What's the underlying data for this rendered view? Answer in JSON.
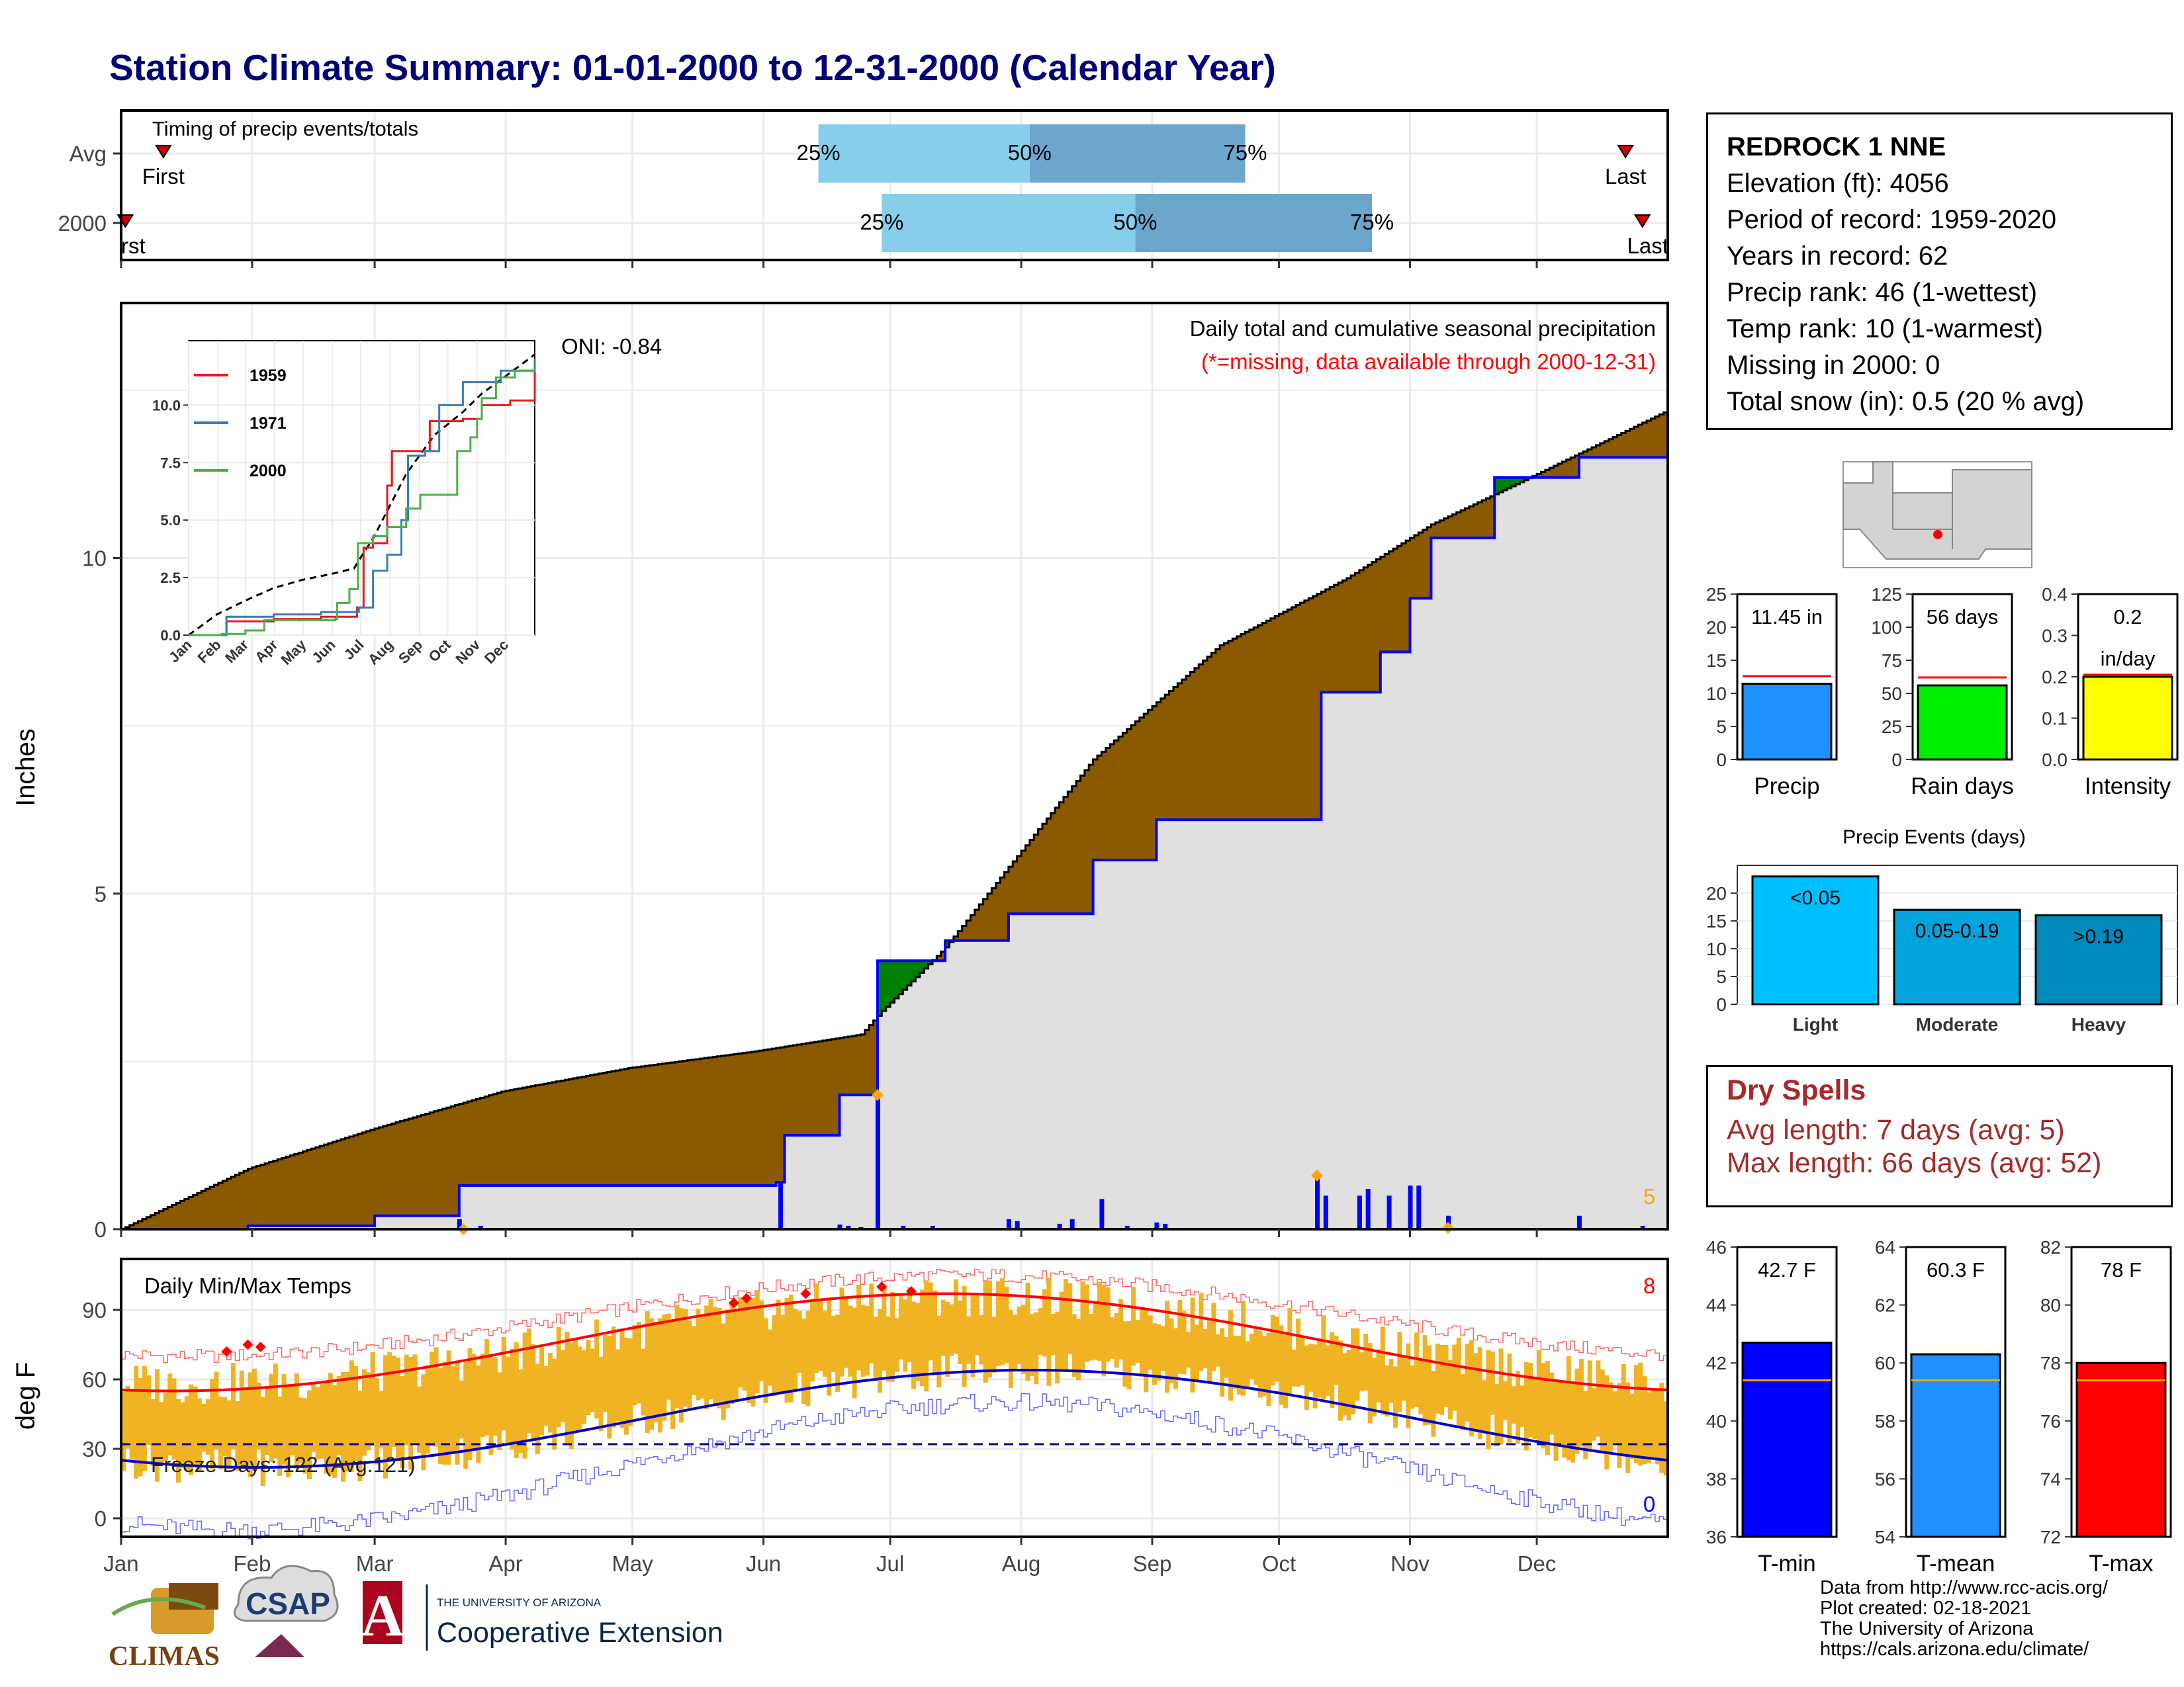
{
  "title": "Station Climate Summary: 01-01-2000 to 12-31-2000 (Calendar Year)",
  "timing": {
    "label": "Timing of precip events/totals",
    "rows": [
      {
        "name": "Avg",
        "first_doy": 10,
        "p25_doy": 165,
        "p50_doy": 215,
        "p75_doy": 266,
        "last_doy": 356
      },
      {
        "name": "2000",
        "first_doy": 1,
        "p25_doy": 180,
        "p50_doy": 240,
        "p75_doy": 296,
        "last_doy": 360
      }
    ],
    "first_label": "First",
    "last_label": "Last",
    "first_label_2000": "rst",
    "last_label_2000": "Last",
    "pct_labels": [
      "25%",
      "50%",
      "75%"
    ]
  },
  "precip_panel": {
    "ylabel": "Inches",
    "title": "Daily total and cumulative seasonal precipitation",
    "subtitle": "(*=missing, data available through 2000-12-31)",
    "oni": "ONI: -0.84",
    "count_label": "5",
    "yticks": [
      "0",
      "5",
      "10"
    ],
    "cum_avg_points": [
      [
        0,
        0
      ],
      [
        30,
        0.9
      ],
      [
        60,
        1.5
      ],
      [
        90,
        2.05
      ],
      [
        120,
        2.4
      ],
      [
        150,
        2.65
      ],
      [
        175,
        2.9
      ],
      [
        180,
        3.25
      ],
      [
        195,
        4.2
      ],
      [
        210,
        5.4
      ],
      [
        230,
        7.0
      ],
      [
        260,
        8.7
      ],
      [
        290,
        9.7
      ],
      [
        310,
        10.5
      ],
      [
        330,
        11.1
      ],
      [
        366,
        12.2
      ]
    ],
    "cum_2000_points": [
      [
        0,
        0
      ],
      [
        30,
        0.05
      ],
      [
        60,
        0.2
      ],
      [
        80,
        0.65
      ],
      [
        155,
        0.7
      ],
      [
        157,
        1.4
      ],
      [
        170,
        2.0
      ],
      [
        178,
        2.0
      ],
      [
        179,
        4.0
      ],
      [
        195,
        4.3
      ],
      [
        210,
        4.7
      ],
      [
        230,
        5.5
      ],
      [
        245,
        6.1
      ],
      [
        282,
        6.1
      ],
      [
        284,
        8.0
      ],
      [
        298,
        8.6
      ],
      [
        305,
        9.4
      ],
      [
        310,
        10.3
      ],
      [
        325,
        11.2
      ],
      [
        345,
        11.5
      ],
      [
        366,
        11.45
      ]
    ],
    "daily_bars": [
      [
        80,
        0.15
      ],
      [
        85,
        0.05
      ],
      [
        156,
        0.7
      ],
      [
        158,
        0.02
      ],
      [
        170,
        0.07
      ],
      [
        172,
        0.05
      ],
      [
        175,
        0.03
      ],
      [
        179,
        2.0
      ],
      [
        185,
        0.05
      ],
      [
        192,
        0.05
      ],
      [
        210,
        0.15
      ],
      [
        212,
        0.12
      ],
      [
        222,
        0.08
      ],
      [
        225,
        0.15
      ],
      [
        232,
        0.45
      ],
      [
        238,
        0.05
      ],
      [
        245,
        0.1
      ],
      [
        247,
        0.08
      ],
      [
        283,
        0.75
      ],
      [
        285,
        0.5
      ],
      [
        293,
        0.5
      ],
      [
        295,
        0.6
      ],
      [
        300,
        0.5
      ],
      [
        305,
        0.65
      ],
      [
        307,
        0.65
      ],
      [
        314,
        0.2
      ],
      [
        345,
        0.2
      ],
      [
        360,
        0.05
      ]
    ]
  },
  "inset": {
    "series": [
      {
        "name": "1959",
        "color": "#e41a1c"
      },
      {
        "name": "1971",
        "color": "#377eb8"
      },
      {
        "name": "2000",
        "color": "#4daf4a"
      }
    ],
    "yticks": [
      "0.0",
      "2.5",
      "5.0",
      "7.5",
      "10.0"
    ],
    "months": [
      "Jan",
      "Feb",
      "Mar",
      "Apr",
      "May",
      "Jun",
      "Jul",
      "Aug",
      "Sep",
      "Oct",
      "Nov",
      "Dec"
    ]
  },
  "temp_panel": {
    "ylabel": "deg F",
    "title": "Daily Min/Max Temps",
    "freeze": "Freeze Days: 122 (Avg:121)",
    "max_count": "8",
    "min_count": "0",
    "yticks": [
      "0",
      "30",
      "60",
      "90"
    ],
    "freeze_line": 32
  },
  "months": [
    "Jan",
    "Feb",
    "Mar",
    "Apr",
    "May",
    "Jun",
    "Jul",
    "Aug",
    "Sep",
    "Oct",
    "Nov",
    "Dec"
  ],
  "station": {
    "name": "REDROCK 1 NNE",
    "lines": [
      "Elevation (ft): 4056",
      "Period of record: 1959-2020",
      "Years in record: 62",
      "Precip rank: 46 (1-wettest)",
      "Temp rank: 10 (1-warmest)",
      "Missing in 2000: 0",
      "Total snow (in): 0.5 (20 % avg)"
    ]
  },
  "gauges_precip": [
    {
      "label": "Precip",
      "value_text": "11.45 in",
      "value": 11.45,
      "avg": 12.6,
      "ymax": 25,
      "ticks": [
        "0",
        "5",
        "10",
        "15",
        "20",
        "25"
      ],
      "color": "#1e90ff"
    },
    {
      "label": "Rain days",
      "value_text": "56 days",
      "value": 56,
      "avg": 62,
      "ymax": 125,
      "ticks": [
        "0",
        "25",
        "50",
        "75",
        "100",
        "125"
      ],
      "color": "#00ee00"
    },
    {
      "label": "Intensity",
      "value_text": "0.2 in/day",
      "value": 0.2,
      "avg": 0.205,
      "ymax": 0.4,
      "ticks": [
        "0.0",
        "0.1",
        "0.2",
        "0.3",
        "0.4"
      ],
      "color": "#ffff00"
    }
  ],
  "events": {
    "title": "Precip Events (days)",
    "categories": [
      "Light",
      "Moderate",
      "Heavy"
    ],
    "labels": [
      "<0.05",
      "0.05-0.19",
      ">0.19"
    ],
    "values": [
      23,
      17,
      16
    ],
    "colors": [
      "#00bfff",
      "#00a3dc",
      "#0089bd"
    ],
    "yticks": [
      "0",
      "5",
      "10",
      "15",
      "20"
    ]
  },
  "dry_spells": {
    "title": "Dry Spells",
    "avg": "Avg length: 7 days (avg: 5)",
    "max": "Max length: 66 days (avg: 52)"
  },
  "gauges_temp": [
    {
      "label": "T-min",
      "value_text": "42.7 F",
      "value": 42.7,
      "avg": 41.4,
      "ymin": 36,
      "ymax": 46,
      "ticks": [
        "36",
        "38",
        "40",
        "42",
        "44",
        "46"
      ],
      "color": "#0000ff"
    },
    {
      "label": "T-mean",
      "value_text": "60.3 F",
      "value": 60.3,
      "avg": 59.4,
      "ymin": 54,
      "ymax": 64,
      "ticks": [
        "54",
        "56",
        "58",
        "60",
        "62",
        "64"
      ],
      "color": "#1e90ff"
    },
    {
      "label": "T-max",
      "value_text": "78 F",
      "value": 78,
      "avg": 77.4,
      "ymin": 72,
      "ymax": 82,
      "ticks": [
        "72",
        "74",
        "76",
        "78",
        "80",
        "82"
      ],
      "color": "#ff0000"
    }
  ],
  "credits": [
    "Data from http://www.rcc-acis.org/",
    "Plot created: 02-18-2021",
    "The University of Arizona",
    "https://cals.arizona.edu/climate/"
  ],
  "logos": {
    "climas": "CLIMAS",
    "csap": "CSAP",
    "ua_small": "THE UNIVERSITY OF ARIZONA",
    "ua_big": "Cooperative Extension"
  },
  "colors": {
    "title": "#00007a",
    "brown": "#8b5a00",
    "green": "#008000",
    "grey": "#e0e0e0",
    "blue": "#0000ff",
    "gold": "#f0b323",
    "light_blue": "#87ceeb",
    "mid_blue": "#6ca6cd"
  }
}
